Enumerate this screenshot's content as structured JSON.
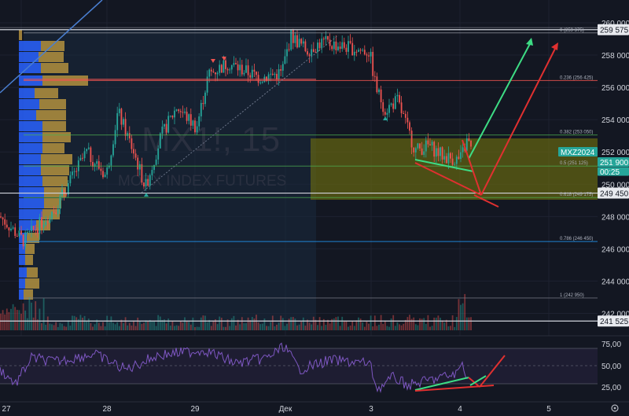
{
  "watermark": {
    "symbol": "MX1!, 15",
    "name": "MOEX INDEX FUTURES"
  },
  "price_axis": {
    "ticks": [
      "260 000",
      "258 000",
      "256 000",
      "254 000",
      "252 000",
      "250 000",
      "248 000",
      "246 000",
      "244 000",
      "242 000"
    ],
    "badges": [
      {
        "text": "259 575",
        "style": "white"
      },
      {
        "text": "MXZ2024",
        "style": "green"
      },
      {
        "text": "251 900",
        "style": "green"
      },
      {
        "text": "00:25",
        "style": "green"
      },
      {
        "text": "249 450",
        "style": "white"
      },
      {
        "text": "241 525",
        "style": "white"
      }
    ]
  },
  "fib_labels": [
    "0 (259 375)",
    "0.236 (256 425)",
    "0.382 (253 050)",
    "0.5 (251 125)",
    "0.618 (249 175)",
    "0.786 (246 450)",
    "1 (242 950)"
  ],
  "rsi_axis": {
    "ticks": [
      "75,00",
      "50,00",
      "25,00"
    ]
  },
  "time_axis": {
    "labels": [
      "27",
      "28",
      "29",
      "Дек",
      "3",
      "4",
      "5"
    ]
  },
  "icons": {
    "settings": "gear-icon"
  },
  "colors": {
    "background": "#131722",
    "up": "#26a69a",
    "down": "#ef5350",
    "rsi": "#7e57c2",
    "zone": "#808000",
    "profile_up": "#2962ff",
    "profile_down": "#c8a040"
  },
  "chart_data": {
    "type": "candlestick",
    "instrument": "MXZ2024",
    "last_price": 251900,
    "levels": [
      259575,
      249450,
      241525
    ],
    "fib_levels": [
      {
        "ratio": 0,
        "price": 259375
      },
      {
        "ratio": 0.236,
        "price": 256425
      },
      {
        "ratio": 0.382,
        "price": 253050
      },
      {
        "ratio": 0.5,
        "price": 251125
      },
      {
        "ratio": 0.618,
        "price": 249175
      },
      {
        "ratio": 0.786,
        "price": 246450
      },
      {
        "ratio": 1,
        "price": 242950
      }
    ],
    "ylim": [
      241000,
      260800
    ],
    "rsi_ylim": [
      15,
      80
    ]
  }
}
